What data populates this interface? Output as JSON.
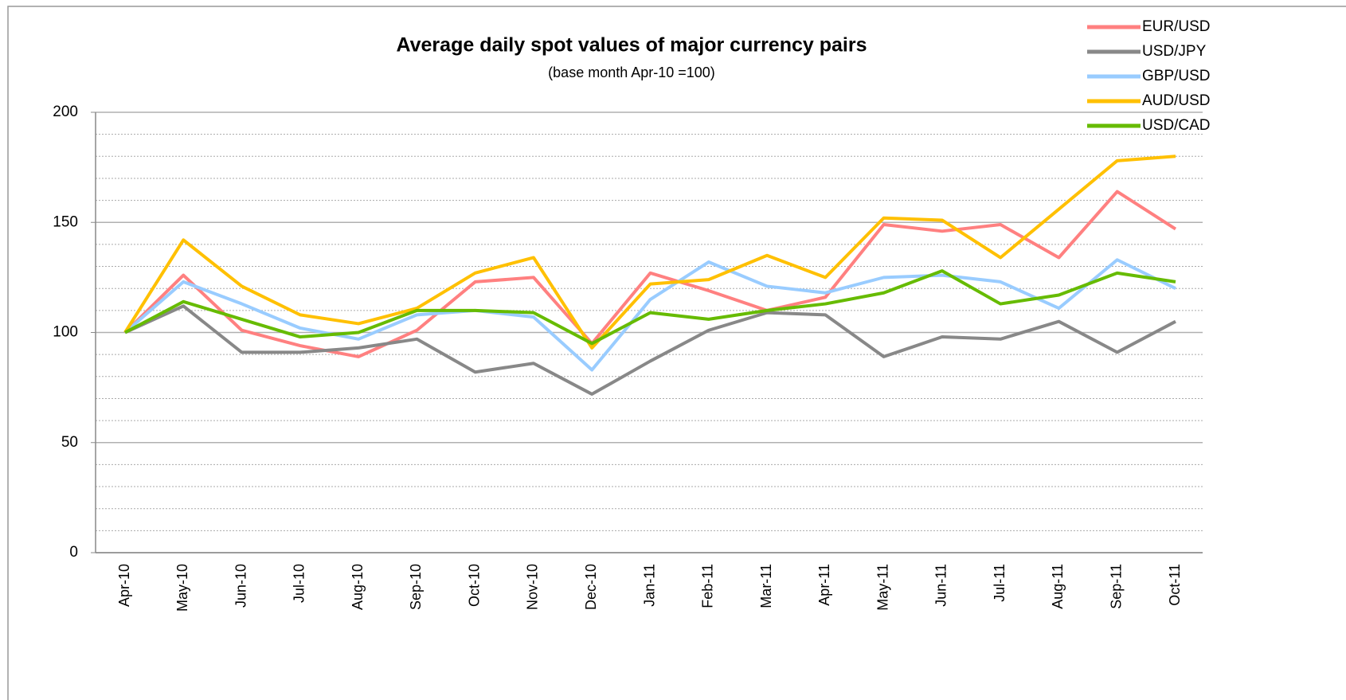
{
  "chart_data": {
    "type": "line",
    "title": "Average daily spot values of major currency pairs",
    "subtitle": "(base month Apr-10 =100)",
    "categories": [
      "Apr-10",
      "May-10",
      "Jun-10",
      "Jul-10",
      "Aug-10",
      "Sep-10",
      "Oct-10",
      "Nov-10",
      "Dec-10",
      "Jan-11",
      "Feb-11",
      "Mar-11",
      "Apr-11",
      "May-11",
      "Jun-11",
      "Jul-11",
      "Aug-11",
      "Sep-11",
      "Oct-11"
    ],
    "series": [
      {
        "name": "EUR/USD",
        "color": "#ff8080",
        "values": [
          100,
          126,
          101,
          94,
          89,
          101,
          123,
          125,
          95,
          127,
          119,
          110,
          116,
          149,
          146,
          149,
          134,
          164,
          147
        ]
      },
      {
        "name": "USD/JPY",
        "color": "#888888",
        "values": [
          100,
          112,
          91,
          91,
          93,
          97,
          82,
          86,
          72,
          87,
          101,
          109,
          108,
          89,
          98,
          97,
          105,
          91,
          105
        ]
      },
      {
        "name": "GBP/USD",
        "color": "#99ccff",
        "values": [
          100,
          123,
          113,
          102,
          97,
          108,
          110,
          107,
          83,
          115,
          132,
          121,
          118,
          125,
          126,
          123,
          111,
          133,
          120
        ]
      },
      {
        "name": "AUD/USD",
        "color": "#ffc000",
        "values": [
          100,
          142,
          121,
          108,
          104,
          111,
          127,
          134,
          93,
          122,
          124,
          135,
          125,
          152,
          151,
          134,
          156,
          178,
          180
        ]
      },
      {
        "name": "USD/CAD",
        "color": "#66bb00",
        "values": [
          100,
          114,
          106,
          98,
          100,
          110,
          110,
          109,
          95,
          109,
          106,
          110,
          113,
          118,
          128,
          113,
          117,
          127,
          123
        ]
      }
    ],
    "ylim": [
      0,
      200
    ],
    "yticks": [
      0,
      50,
      100,
      150,
      200
    ],
    "minor_yticks": [
      10,
      20,
      30,
      40,
      60,
      70,
      80,
      90,
      110,
      120,
      130,
      140,
      160,
      170,
      180,
      190
    ],
    "grid": true,
    "legend": "top-right"
  }
}
